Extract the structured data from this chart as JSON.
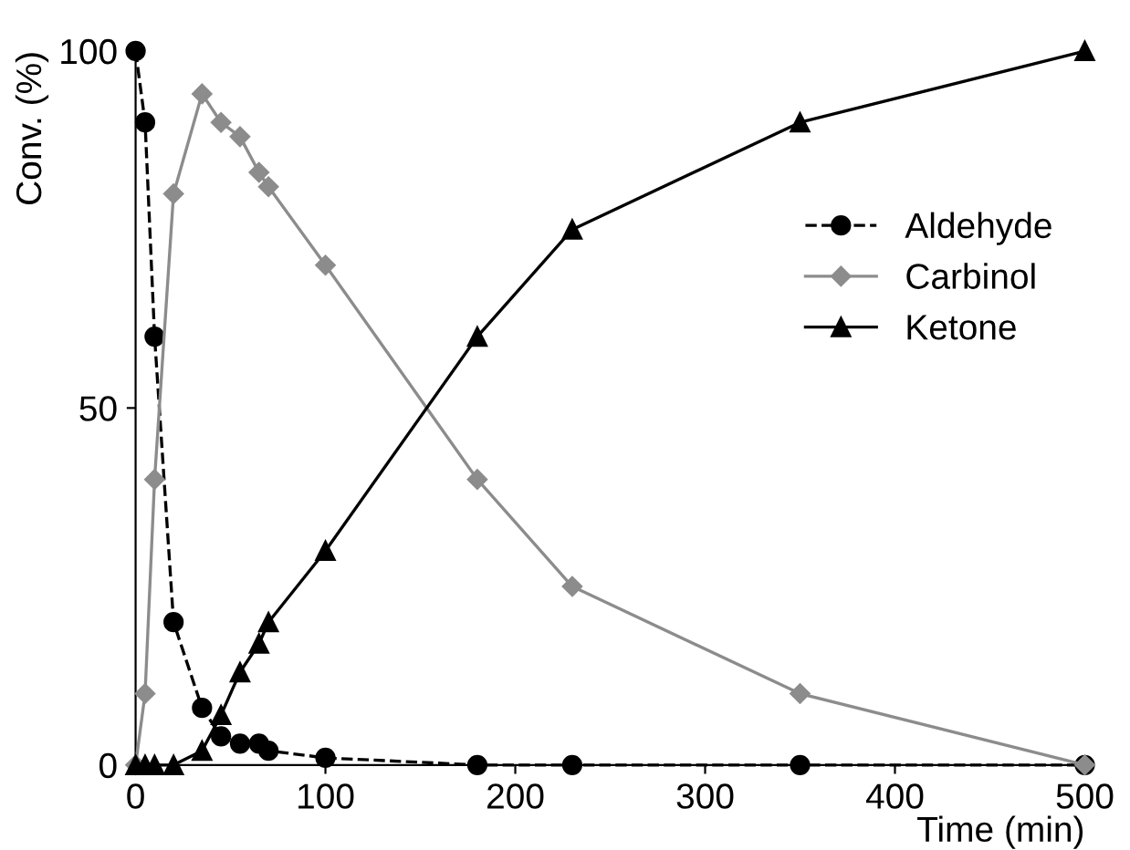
{
  "chart_data": {
    "type": "line",
    "xlabel": "Time (min)",
    "ylabel": "Conv. (%)",
    "xlim": [
      0,
      500
    ],
    "ylim": [
      0,
      100
    ],
    "xticks": [
      0,
      100,
      200,
      300,
      400,
      500
    ],
    "yticks": [
      0,
      50,
      100
    ],
    "grid": false,
    "legend": "right",
    "series": [
      {
        "name": "Aldehyde",
        "color": "#000000",
        "marker": "circle",
        "line_style": "dashed",
        "x": [
          0,
          5,
          10,
          20,
          35,
          45,
          55,
          65,
          70,
          100,
          180,
          230,
          350,
          500
        ],
        "values": [
          100,
          90,
          60,
          20,
          8,
          4,
          3,
          3,
          2,
          1,
          0,
          0,
          0,
          0
        ]
      },
      {
        "name": "Carbinol",
        "color": "#8c8c8c",
        "marker": "diamond",
        "line_style": "solid",
        "x": [
          0,
          5,
          10,
          20,
          35,
          45,
          55,
          65,
          70,
          100,
          180,
          230,
          350,
          500
        ],
        "values": [
          0,
          10,
          40,
          80,
          94,
          90,
          88,
          83,
          81,
          70,
          40,
          25,
          10,
          0
        ]
      },
      {
        "name": "Ketone",
        "color": "#000000",
        "marker": "triangle",
        "line_style": "solid",
        "x": [
          0,
          5,
          10,
          20,
          35,
          45,
          55,
          65,
          70,
          100,
          180,
          230,
          350,
          500
        ],
        "values": [
          0,
          0,
          0,
          0,
          2,
          7,
          13,
          17,
          20,
          30,
          60,
          75,
          90,
          100
        ]
      }
    ]
  }
}
